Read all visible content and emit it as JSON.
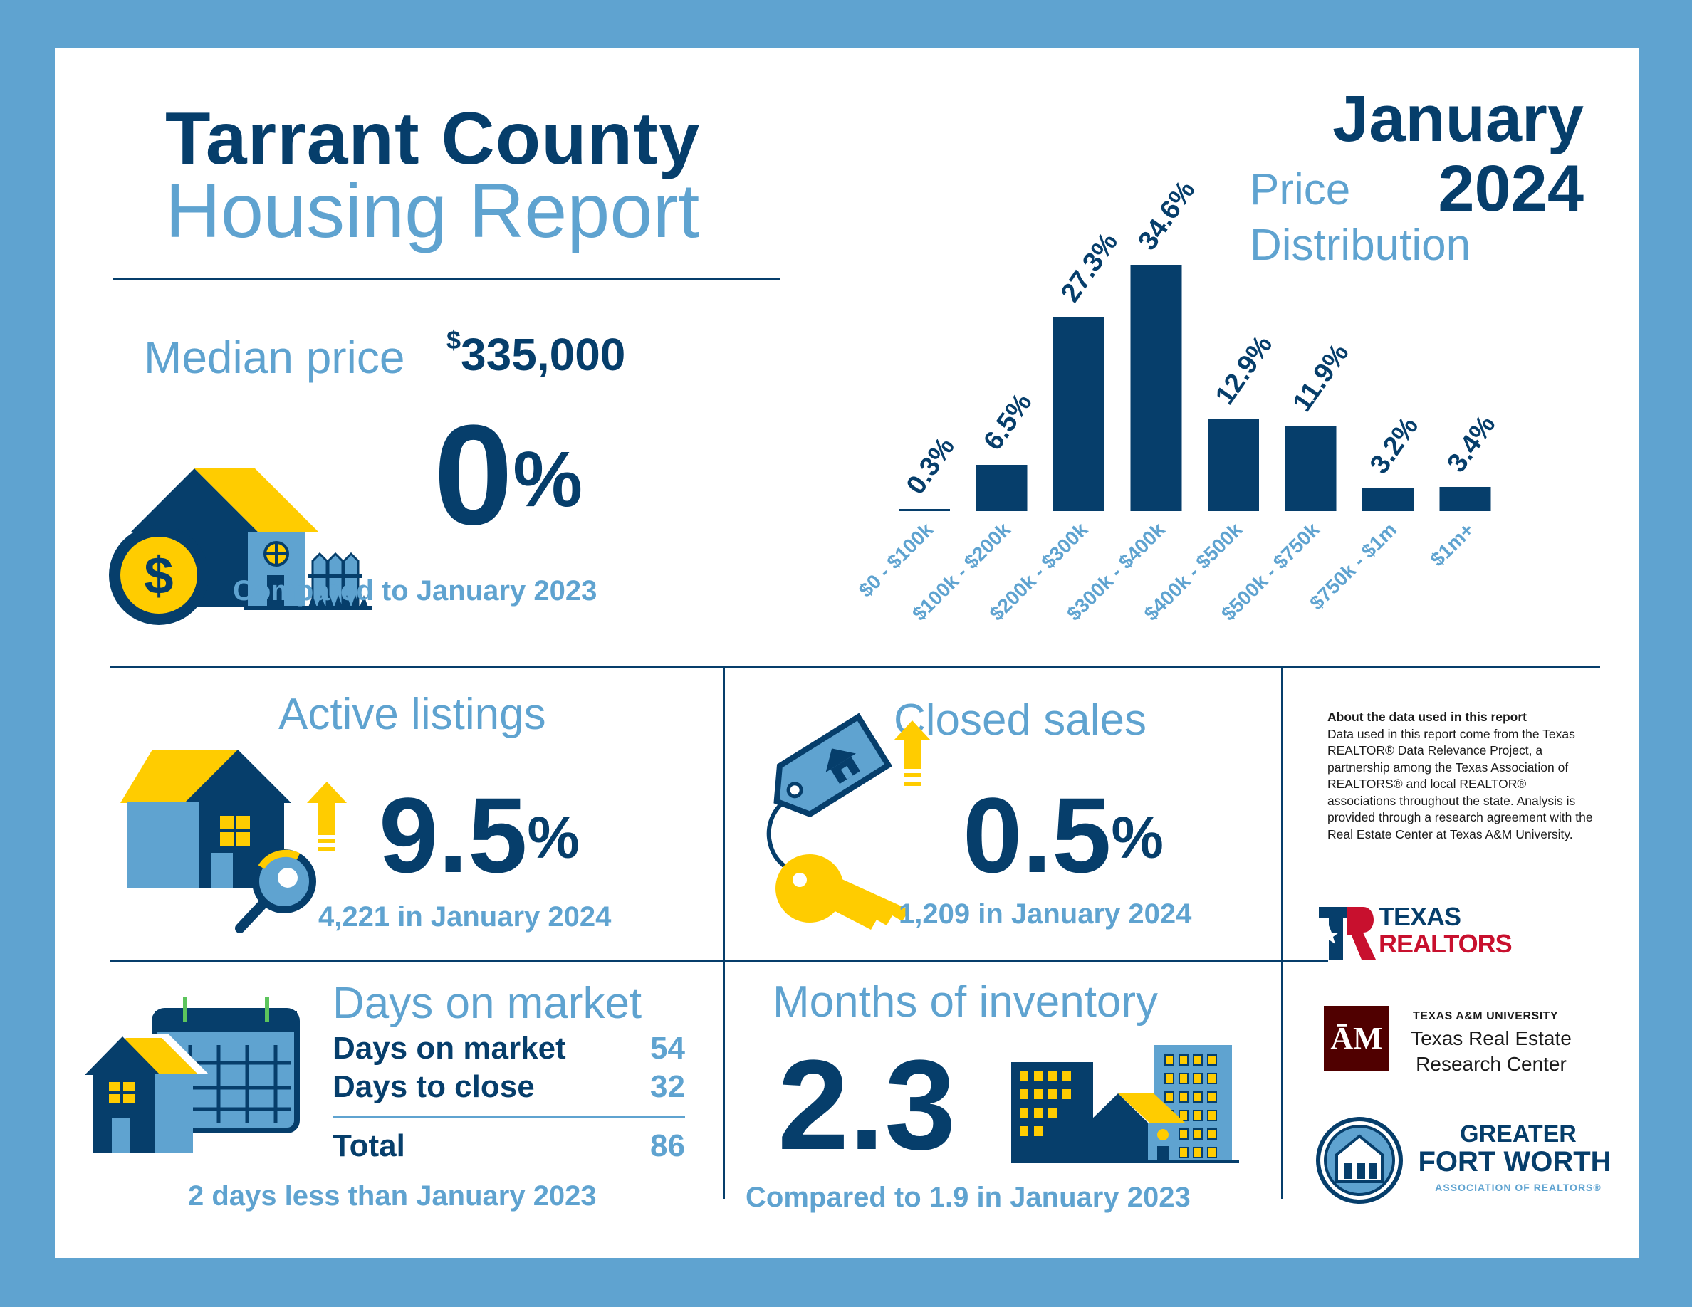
{
  "header": {
    "title_line1": "Tarrant County",
    "title_line2": "Housing Report",
    "month": "January",
    "year": "2024"
  },
  "median": {
    "label": "Median price",
    "currency": "$",
    "value": "335,000",
    "change": "0",
    "change_unit": "%",
    "comparison": "Compared to January 2023"
  },
  "chart_data": {
    "type": "bar",
    "title": "Price Distribution",
    "title_line1": "Price",
    "title_line2": "Distribution",
    "categories": [
      "$0 - $100k",
      "$100k - $200k",
      "$200k - $300k",
      "$300k - $400k",
      "$400k - $500k",
      "$500k - $750k",
      "$750k - $1m",
      "$1m+"
    ],
    "values": [
      0.3,
      6.5,
      27.3,
      34.6,
      12.9,
      11.9,
      3.2,
      3.4
    ],
    "value_labels": [
      "0.3%",
      "6.5%",
      "27.3%",
      "34.6%",
      "12.9%",
      "11.9%",
      "3.2%",
      "3.4%"
    ],
    "ylim": [
      0,
      35
    ],
    "grid": false,
    "legend": "none",
    "bar_color": "#063e6b",
    "label_color": "#5fa3d0"
  },
  "active_listings": {
    "title": "Active listings",
    "change": "9.5",
    "unit": "%",
    "detail": "4,221 in January 2024"
  },
  "closed_sales": {
    "title": "Closed sales",
    "change": "0.5",
    "unit": "%",
    "detail": "1,209 in January 2024"
  },
  "days_on_market": {
    "title": "Days on market",
    "rows": [
      {
        "label": "Days on market",
        "value": "54"
      },
      {
        "label": "Days to close",
        "value": "32"
      }
    ],
    "total_label": "Total",
    "total_value": "86",
    "detail": "2 days less than January 2023"
  },
  "months_inventory": {
    "title": "Months of inventory",
    "value": "2.3",
    "detail": "Compared to 1.9 in January 2023"
  },
  "about": {
    "heading": "About the data used in this report",
    "body": "Data used in this report come from the Texas REALTOR® Data Relevance Project, a partnership among the Texas Association of REALTORS® and local REALTOR® associations throughout the state. Analysis is provided through a research agreement with the Real Estate Center at Texas A&M University."
  },
  "logos": {
    "texas_realtors_line1": "TEXAS",
    "texas_realtors_line2": "REALTORS",
    "tamu_line1": "TEXAS A&M UNIVERSITY",
    "tamu_line2": "Texas Real Estate",
    "tamu_line3": "Research Center",
    "gfw_line1": "GREATER",
    "gfw_line2": "FORT WORTH",
    "gfw_line3": "ASSOCIATION OF REALTORS®"
  },
  "colors": {
    "navy": "#063e6b",
    "light_blue": "#5fa3d0",
    "yellow": "#ffcc00",
    "maroon": "#500000",
    "red": "#c8102e"
  }
}
